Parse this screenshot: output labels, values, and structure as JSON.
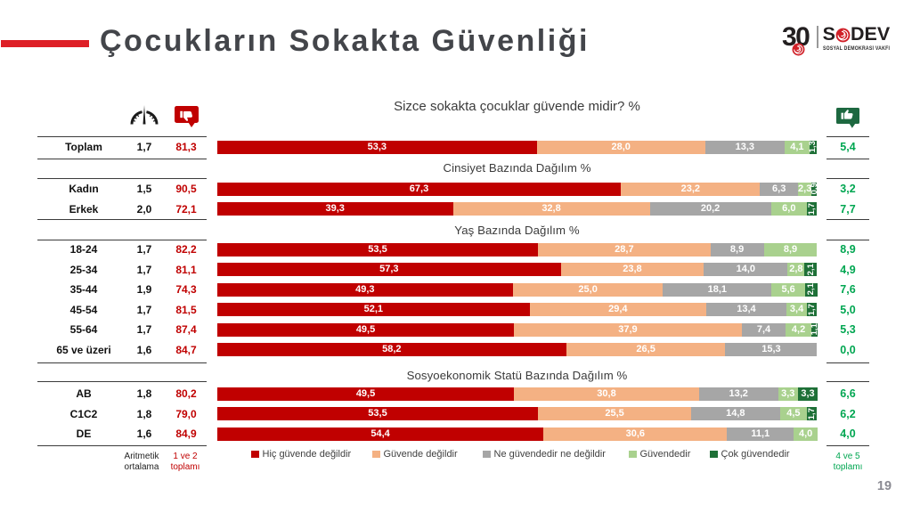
{
  "slide": {
    "title": "Çocukların Sokakta Güvenliği",
    "page_number": "19",
    "accent_color": "#DE1F26"
  },
  "logo": {
    "anniversary": "30",
    "name": "SODEV",
    "subtitle": "SOSYAL DEMOKRASİ VAKFI",
    "rose_color": "#D02028"
  },
  "left_table": {
    "col_mean_icon": "gauge-icon",
    "col_negative_icon": "thumbs-down-icon",
    "footer_mean": "Aritmetik ortalama",
    "footer_negative": "1 ve 2 toplamı"
  },
  "right_column": {
    "header_icon": "thumbs-up-icon",
    "footer": "4 ve 5 toplamı",
    "bubble_color": "#1D6840",
    "text_color": "#00A651"
  },
  "chart_data": {
    "type": "bar",
    "orientation": "horizontal-stacked",
    "title": "Sizce sokakta çocuklar güvende midir? %",
    "xlim": [
      0,
      100
    ],
    "legend_position": "bottom",
    "series_names": [
      "Hiç güvende değildir",
      "Güvende değildir",
      "Ne güvendedir ne değildir",
      "Güvendedir",
      "Çok güvendedir"
    ],
    "series_colors": [
      "#C00000",
      "#F4B183",
      "#A6A6A6",
      "#A9D18E",
      "#1E7037"
    ],
    "groups": [
      {
        "header": "",
        "rows": [
          {
            "label": "Toplam",
            "mean": "1,7",
            "negative_total": "81,3",
            "values": [
              53.3,
              28.0,
              13.3,
              4.1,
              1.3
            ],
            "labels": [
              "53,3",
              "28,0",
              "13,3",
              "4,1",
              "1,3"
            ],
            "positive_total": "5,4"
          }
        ]
      },
      {
        "header": "Cinsiyet Bazında Dağılım %",
        "rows": [
          {
            "label": "Kadın",
            "mean": "1,5",
            "negative_total": "90,5",
            "values": [
              67.3,
              23.2,
              6.3,
              2.3,
              0.9
            ],
            "labels": [
              "67,3",
              "23,2",
              "6,3",
              "2,3",
              "0,9"
            ],
            "positive_total": "3,2"
          },
          {
            "label": "Erkek",
            "mean": "2,0",
            "negative_total": "72,1",
            "values": [
              39.3,
              32.8,
              20.2,
              6.0,
              1.7
            ],
            "labels": [
              "39,3",
              "32,8",
              "20,2",
              "6,0",
              "1,7"
            ],
            "positive_total": "7,7"
          }
        ]
      },
      {
        "header": "Yaş Bazında Dağılım %",
        "rows": [
          {
            "label": "18-24",
            "mean": "1,7",
            "negative_total": "82,2",
            "values": [
              53.5,
              28.7,
              8.9,
              8.9,
              0
            ],
            "labels": [
              "53,5",
              "28,7",
              "8,9",
              "8,9",
              ""
            ],
            "positive_total": "8,9"
          },
          {
            "label": "25-34",
            "mean": "1,7",
            "negative_total": "81,1",
            "values": [
              57.3,
              23.8,
              14.0,
              2.8,
              2.1
            ],
            "labels": [
              "57,3",
              "23,8",
              "14,0",
              "2,8",
              "2,1"
            ],
            "positive_total": "4,9"
          },
          {
            "label": "35-44",
            "mean": "1,9",
            "negative_total": "74,3",
            "values": [
              49.3,
              25.0,
              18.1,
              5.6,
              2.1
            ],
            "labels": [
              "49,3",
              "25,0",
              "18,1",
              "5,6",
              "2,1"
            ],
            "positive_total": "7,6"
          },
          {
            "label": "45-54",
            "mean": "1,7",
            "negative_total": "81,5",
            "values": [
              52.1,
              29.4,
              13.4,
              3.4,
              1.7
            ],
            "labels": [
              "52,1",
              "29,4",
              "13,4",
              "3,4",
              "1,7"
            ],
            "positive_total": "5,0"
          },
          {
            "label": "55-64",
            "mean": "1,7",
            "negative_total": "87,4",
            "values": [
              49.5,
              37.9,
              7.4,
              4.2,
              1.1
            ],
            "labels": [
              "49,5",
              "37,9",
              "7,4",
              "4,2",
              "1,1"
            ],
            "positive_total": "5,3"
          },
          {
            "label": "65 ve üzeri",
            "mean": "1,6",
            "negative_total": "84,7",
            "values": [
              58.2,
              26.5,
              15.3,
              0,
              0
            ],
            "labels": [
              "58,2",
              "26,5",
              "15,3",
              "",
              ""
            ],
            "positive_total": "0,0"
          }
        ]
      },
      {
        "header": "Sosyoekonomik Statü Bazında Dağılım %",
        "rows": [
          {
            "label": "AB",
            "mean": "1,8",
            "negative_total": "80,2",
            "values": [
              49.5,
              30.8,
              13.2,
              3.3,
              3.3
            ],
            "labels": [
              "49,5",
              "30,8",
              "13,2",
              "3,3",
              "3,3"
            ],
            "positive_total": "6,6"
          },
          {
            "label": "C1C2",
            "mean": "1,8",
            "negative_total": "79,0",
            "values": [
              53.5,
              25.5,
              14.8,
              4.5,
              1.7
            ],
            "labels": [
              "53,5",
              "25,5",
              "14,8",
              "4,5",
              "1,7"
            ],
            "positive_total": "6,2"
          },
          {
            "label": "DE",
            "mean": "1,6",
            "negative_total": "84,9",
            "values": [
              54.4,
              30.6,
              11.1,
              4.0,
              0
            ],
            "labels": [
              "54,4",
              "30,6",
              "11,1",
              "4,0",
              ""
            ],
            "positive_total": "4,0"
          }
        ]
      }
    ]
  }
}
